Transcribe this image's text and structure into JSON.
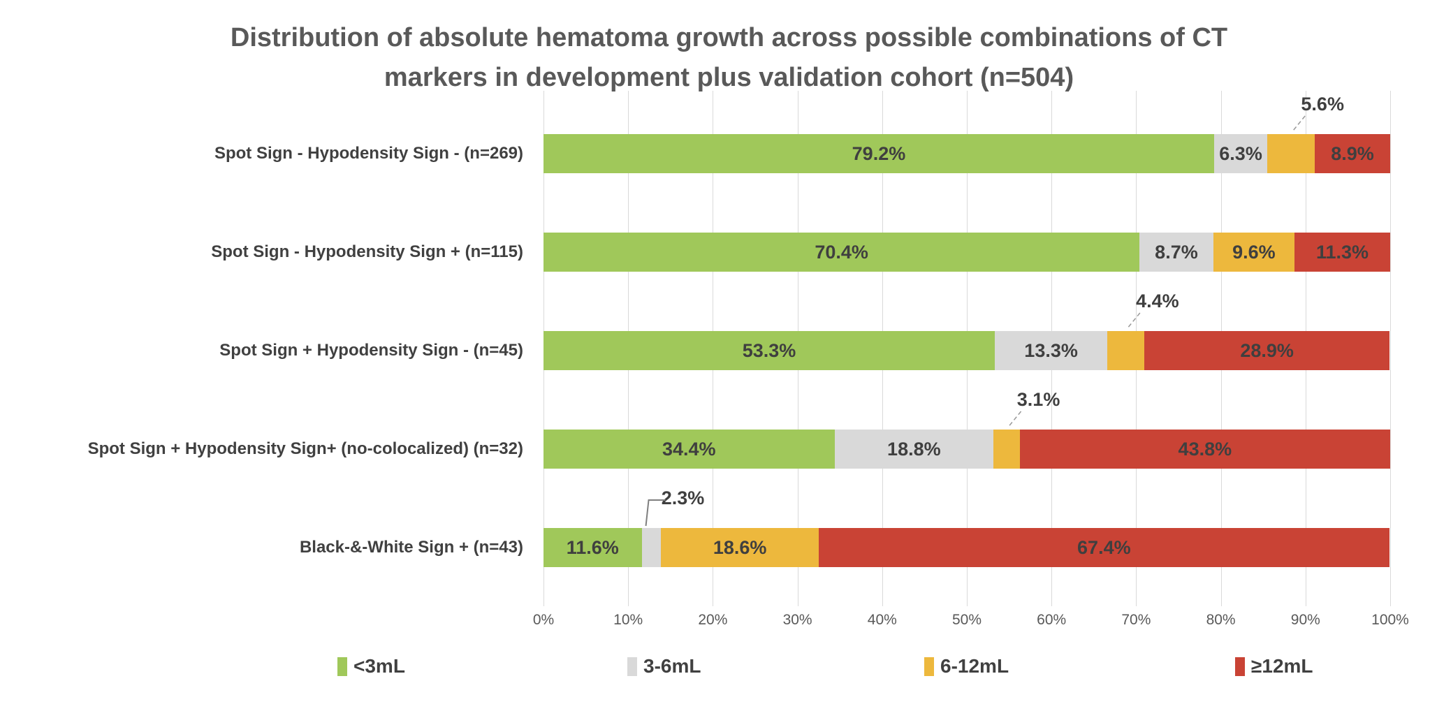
{
  "chart_data": {
    "type": "bar",
    "subtype": "horizontal-stacked-100pct",
    "title": "Distribution of absolute hematoma growth across possible combinations of CT markers in development plus validation cohort (n=504)",
    "title_line1": "Distribution of absolute hematoma growth across possible combinations of CT",
    "title_line2": "markers in development plus validation cohort (n=504)",
    "categories": [
      "Spot Sign - Hypodensity Sign - (n=269)",
      "Spot Sign - Hypodensity Sign + (n=115)",
      "Spot Sign + Hypodensity Sign - (n=45)",
      "Spot Sign + Hypodensity Sign+  (no-colocalized) (n=32)",
      "Black-&-White Sign + (n=43)"
    ],
    "series": [
      {
        "name": "<3mL",
        "color": "#a0c85a",
        "values": [
          79.2,
          70.4,
          53.3,
          34.4,
          11.6
        ]
      },
      {
        "name": "3-6mL",
        "color": "#d9d9d9",
        "values": [
          6.3,
          8.7,
          13.3,
          18.8,
          2.3
        ]
      },
      {
        "name": "6-12mL",
        "color": "#edb83d",
        "values": [
          5.6,
          9.6,
          4.4,
          3.1,
          18.6
        ]
      },
      {
        "name": "≥12mL",
        "color": "#c94335",
        "values": [
          8.9,
          11.3,
          28.9,
          43.8,
          67.4
        ]
      }
    ],
    "callouts": [
      {
        "row": 0,
        "series": 2,
        "leader": "dashed"
      },
      {
        "row": 2,
        "series": 2,
        "leader": "dashed"
      },
      {
        "row": 3,
        "series": 2,
        "leader": "dashed"
      },
      {
        "row": 4,
        "series": 1,
        "leader": "elbow"
      }
    ],
    "x_ticks": [
      "0%",
      "10%",
      "20%",
      "30%",
      "40%",
      "50%",
      "60%",
      "70%",
      "80%",
      "90%",
      "100%"
    ],
    "xlim": [
      0,
      100
    ],
    "grid": "vertical-on",
    "legend_position": "bottom",
    "label_format": "one-decimal-percent"
  }
}
